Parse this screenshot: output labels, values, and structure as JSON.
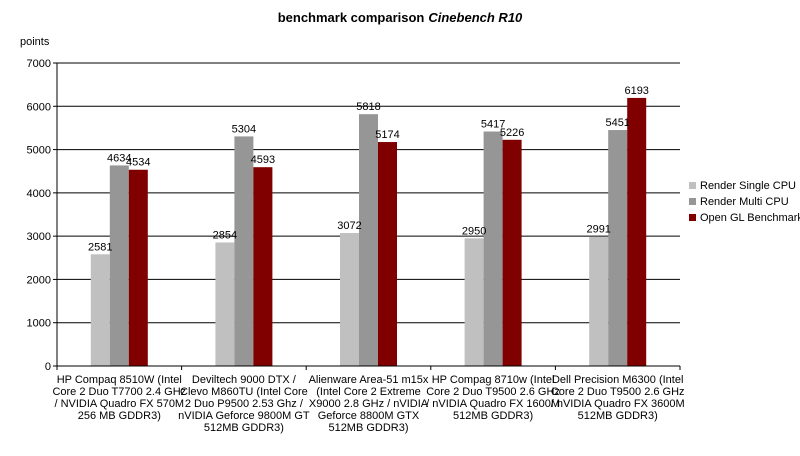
{
  "chart_data": {
    "type": "bar",
    "title": "benchmark comparison",
    "title_emphasis": "Cinebench R10",
    "ylabel": "points",
    "xlabel": "",
    "ylim": [
      0,
      7000
    ],
    "yticks": [
      0,
      1000,
      2000,
      3000,
      4000,
      5000,
      6000,
      7000
    ],
    "grid": true,
    "legend_position": "right",
    "categories": [
      [
        "HP Compaq 8510W (Intel",
        "Core 2 Duo T7700 2.4 GHz",
        "/ NVIDIA Quadro FX 570M",
        "256 MB GDDR3)"
      ],
      [
        "Deviltech 9000 DTX /",
        "Clevo M860TU (Intel Core",
        "2 Duo P9500 2.53 Ghz /",
        "nVIDIA Geforce 9800M GT",
        "512MB GDDR3)"
      ],
      [
        "Alienware Area-51 m15x",
        "(Intel Core 2 Extreme",
        "X9000 2.8 GHz / nVIDIA",
        "Geforce 8800M GTX",
        "512MB GDDR3)"
      ],
      [
        "HP Compag 8710w (Intel",
        "Core 2 Duo T9500 2.6 GHz",
        "/ nVIDIA Quadro FX 1600M",
        "512MB GDDR3)"
      ],
      [
        "Dell Precision M6300 (Intel",
        "Core 2 Duo T9500 2.6 GHz",
        "/ nVIDIA Quadro FX 3600M",
        "512MB GDDR3)"
      ]
    ],
    "series": [
      {
        "name": "Render Single CPU",
        "color": "#c0c0c0",
        "values": [
          2581,
          2854,
          3072,
          2950,
          2991
        ]
      },
      {
        "name": "Render Multi CPU",
        "color": "#969696",
        "values": [
          4634,
          5304,
          5818,
          5417,
          5451
        ]
      },
      {
        "name": "Open GL Benchmark",
        "color": "#800000",
        "values": [
          4534,
          4593,
          5174,
          5226,
          6193
        ]
      }
    ]
  }
}
